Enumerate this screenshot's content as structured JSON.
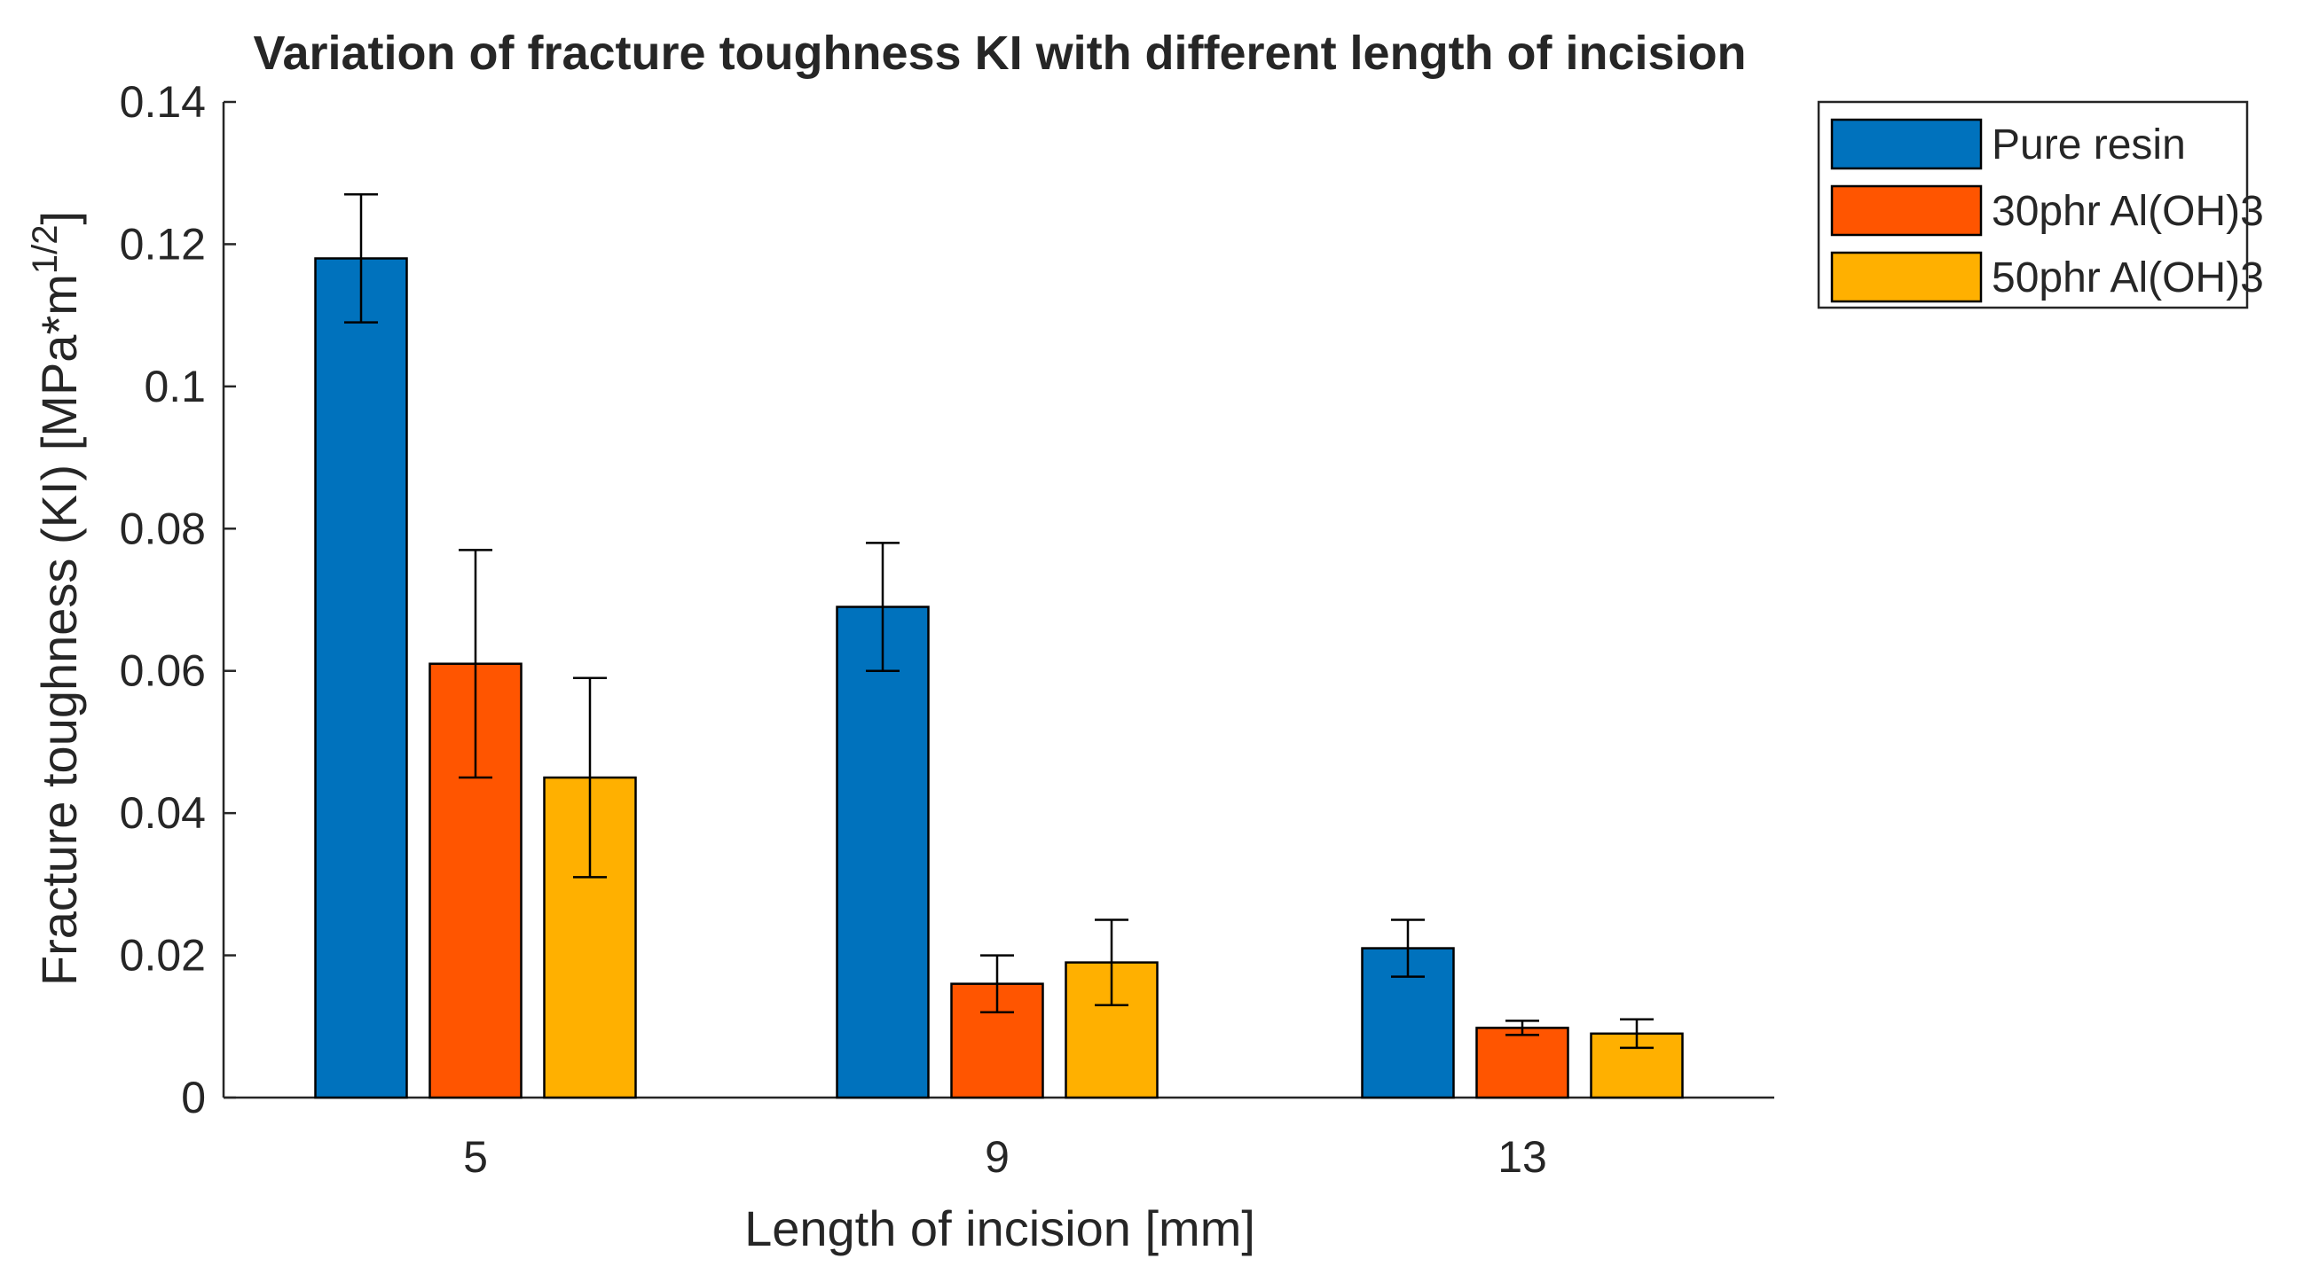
{
  "chart_data": {
    "type": "bar",
    "title": "Variation of fracture toughness KI with different length of incision",
    "xlabel": "Length of incision [mm]",
    "ylabel": {
      "main": "Fracture toughness (KI) [MPa*m",
      "superscript": "1/2",
      "close": "]"
    },
    "categories": [
      "5",
      "9",
      "13"
    ],
    "ylim": [
      0,
      0.14
    ],
    "yticks": [
      0,
      0.02,
      0.04,
      0.06,
      0.08,
      0.1,
      0.12,
      0.14
    ],
    "ytick_labels": [
      "0",
      "0.02",
      "0.04",
      "0.06",
      "0.08",
      "0.1",
      "0.12",
      "0.14"
    ],
    "legend_position": "top-right outside",
    "grid": false,
    "series": [
      {
        "name": "Pure resin",
        "color": "#0072BD",
        "values": [
          0.118,
          0.069,
          0.021
        ],
        "error": [
          0.009,
          0.009,
          0.004
        ]
      },
      {
        "name": "30phr Al(OH)3",
        "color": "#FF5500",
        "values": [
          0.061,
          0.016,
          0.0098
        ],
        "error": [
          0.016,
          0.004,
          0.001
        ]
      },
      {
        "name": "50phr Al(OH)3",
        "color": "#FFB000",
        "values": [
          0.045,
          0.019,
          0.009
        ],
        "error": [
          0.014,
          0.006,
          0.002
        ]
      }
    ]
  }
}
